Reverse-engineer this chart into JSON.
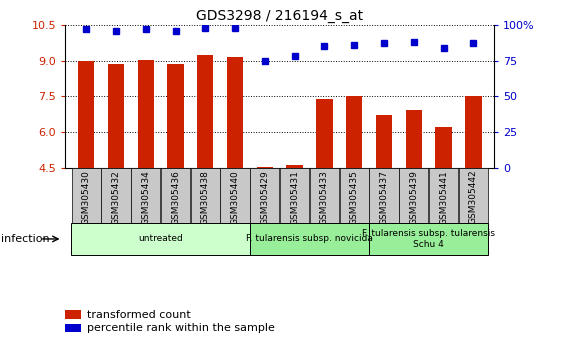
{
  "title": "GDS3298 / 216194_s_at",
  "samples": [
    "GSM305430",
    "GSM305432",
    "GSM305434",
    "GSM305436",
    "GSM305438",
    "GSM305440",
    "GSM305429",
    "GSM305431",
    "GSM305433",
    "GSM305435",
    "GSM305437",
    "GSM305439",
    "GSM305441",
    "GSM305442"
  ],
  "transformed_count": [
    8.98,
    8.85,
    9.02,
    8.85,
    9.22,
    9.15,
    4.55,
    4.65,
    7.38,
    7.52,
    6.72,
    6.92,
    6.22,
    7.52
  ],
  "percentile_rank": [
    97,
    96,
    97,
    96,
    98,
    98,
    75,
    78,
    85,
    86,
    87,
    88,
    84,
    87
  ],
  "ylim_left": [
    4.5,
    10.5
  ],
  "ylim_right": [
    0,
    100
  ],
  "yticks_left": [
    4.5,
    6.0,
    7.5,
    9.0,
    10.5
  ],
  "yticks_right": [
    0,
    25,
    50,
    75,
    100
  ],
  "bar_color": "#cc2200",
  "dot_color": "#0000cc",
  "group_labels": [
    "untreated",
    "F. tularensis subsp. novicida",
    "F. tularensis subsp. tularensis\nSchu 4"
  ],
  "group_starts": [
    0,
    6,
    10
  ],
  "group_ends": [
    5,
    9,
    13
  ],
  "group_colors": [
    "#ccffcc",
    "#99ee99",
    "#99ee99"
  ],
  "infection_label": "infection",
  "legend_bar_label": "transformed count",
  "legend_dot_label": "percentile rank within the sample",
  "tick_label_color_left": "#cc2200",
  "tick_label_color_right": "#0000cc",
  "ticklabel_bg": "#c8c8c8"
}
